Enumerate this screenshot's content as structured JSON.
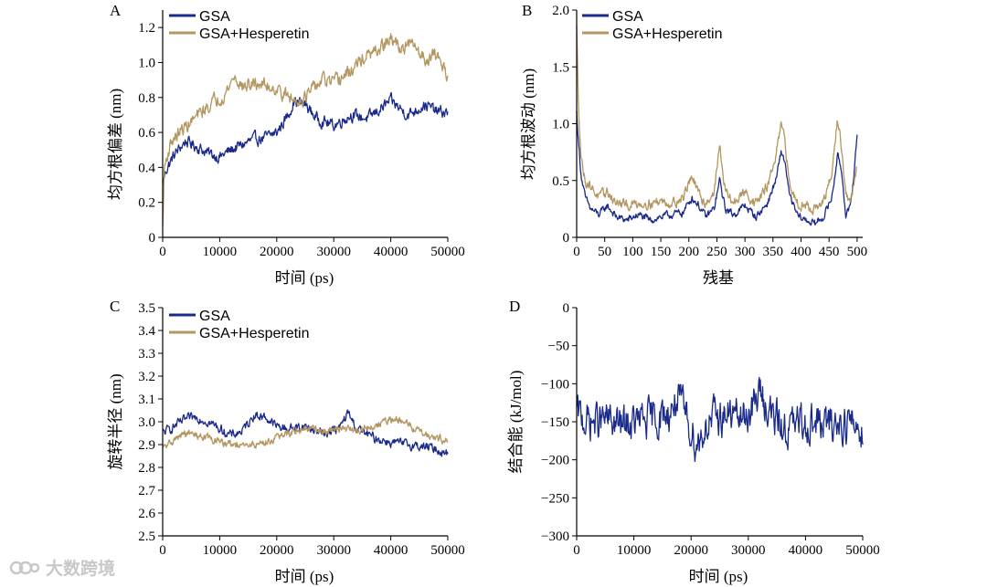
{
  "colors": {
    "gsa": "#1a2a8a",
    "hesperetin": "#b39660",
    "axis": "#000000"
  },
  "watermark": {
    "text": "大数跨境",
    "icon": "brand-logo-icon"
  },
  "chart_data": [
    {
      "id": "A",
      "panel_label": "A",
      "type": "line",
      "xlabel": "时间 (ps)",
      "ylabel": "均方根偏差 (nm)",
      "xlim": [
        0,
        50000
      ],
      "ylim": [
        0,
        1.3
      ],
      "xticks": [
        "0",
        "10000",
        "20000",
        "30000",
        "40000",
        "50000"
      ],
      "yticks": [
        "0",
        "0.2",
        "0.4",
        "0.6",
        "0.8",
        "1.0",
        "1.2"
      ],
      "legend_position": "top-left",
      "series": [
        {
          "name": "GSA",
          "color": "#1a2a8a",
          "noise": 0.03,
          "x": [
            0,
            500,
            2000,
            4000,
            6000,
            8000,
            10000,
            12000,
            14000,
            16000,
            18000,
            20000,
            22000,
            23000,
            25000,
            27000,
            30000,
            33000,
            36000,
            40000,
            43000,
            46000,
            48000,
            50000
          ],
          "y": [
            0.3,
            0.38,
            0.47,
            0.55,
            0.52,
            0.48,
            0.46,
            0.5,
            0.53,
            0.56,
            0.57,
            0.6,
            0.7,
            0.78,
            0.76,
            0.68,
            0.64,
            0.7,
            0.68,
            0.78,
            0.7,
            0.76,
            0.72,
            0.71
          ]
        },
        {
          "name": "GSA+Hesperetin",
          "color": "#b39660",
          "noise": 0.035,
          "x": [
            0,
            300,
            1500,
            3000,
            5000,
            7000,
            9000,
            11000,
            12500,
            14000,
            17000,
            20000,
            23000,
            25000,
            28000,
            30000,
            33000,
            35000,
            37000,
            40000,
            42000,
            44000,
            46000,
            48000,
            50000
          ],
          "y": [
            0.05,
            0.4,
            0.55,
            0.6,
            0.66,
            0.72,
            0.78,
            0.82,
            0.92,
            0.86,
            0.88,
            0.85,
            0.78,
            0.8,
            0.9,
            0.88,
            0.95,
            1.02,
            1.05,
            1.13,
            1.08,
            1.1,
            1.02,
            1.05,
            0.93
          ]
        }
      ]
    },
    {
      "id": "B",
      "panel_label": "B",
      "type": "line",
      "xlabel": "残基",
      "ylabel": "均方根波动 (nm)",
      "xlim": [
        0,
        510
      ],
      "ylim": [
        0,
        2.0
      ],
      "xticks": [
        "0",
        "50",
        "100",
        "150",
        "200",
        "250",
        "300",
        "350",
        "400",
        "450",
        "500"
      ],
      "yticks": [
        "0",
        "0.5",
        "1.0",
        "1.5",
        "2.0"
      ],
      "legend_position": "top-left",
      "series": [
        {
          "name": "GSA",
          "color": "#1a2a8a",
          "noise": 0.03,
          "x": [
            0,
            3,
            8,
            15,
            25,
            40,
            55,
            70,
            90,
            110,
            130,
            150,
            170,
            190,
            205,
            215,
            230,
            245,
            255,
            265,
            280,
            300,
            320,
            340,
            355,
            365,
            372,
            380,
            395,
            410,
            425,
            440,
            455,
            465,
            472,
            480,
            488,
            495,
            500
          ],
          "y": [
            1.1,
            0.85,
            0.55,
            0.35,
            0.25,
            0.2,
            0.28,
            0.18,
            0.15,
            0.2,
            0.15,
            0.18,
            0.2,
            0.22,
            0.35,
            0.3,
            0.18,
            0.25,
            0.5,
            0.25,
            0.2,
            0.28,
            0.18,
            0.3,
            0.5,
            0.75,
            0.65,
            0.35,
            0.18,
            0.15,
            0.12,
            0.18,
            0.35,
            0.72,
            0.6,
            0.2,
            0.25,
            0.6,
            0.9
          ]
        },
        {
          "name": "GSA+Hesperetin",
          "color": "#b39660",
          "noise": 0.04,
          "x": [
            0,
            3,
            8,
            15,
            25,
            40,
            55,
            70,
            90,
            110,
            130,
            150,
            170,
            190,
            205,
            215,
            230,
            245,
            255,
            265,
            280,
            300,
            320,
            340,
            355,
            365,
            372,
            380,
            395,
            410,
            425,
            440,
            455,
            465,
            472,
            480,
            488,
            495,
            500
          ],
          "y": [
            1.85,
            1.2,
            0.7,
            0.5,
            0.45,
            0.35,
            0.4,
            0.3,
            0.28,
            0.3,
            0.3,
            0.32,
            0.3,
            0.35,
            0.55,
            0.4,
            0.3,
            0.4,
            0.8,
            0.4,
            0.3,
            0.4,
            0.3,
            0.45,
            0.7,
            1.0,
            0.8,
            0.45,
            0.3,
            0.28,
            0.25,
            0.3,
            0.55,
            1.05,
            0.8,
            0.35,
            0.3,
            0.5,
            0.6
          ]
        }
      ]
    },
    {
      "id": "C",
      "panel_label": "C",
      "type": "line",
      "xlabel": "时间 (ps)",
      "ylabel": "旋转半径 (nm)",
      "xlim": [
        0,
        50000
      ],
      "ylim": [
        2.5,
        3.5
      ],
      "xticks": [
        "0",
        "10000",
        "20000",
        "30000",
        "40000",
        "50000"
      ],
      "yticks": [
        "2.5",
        "2.6",
        "2.7",
        "2.8",
        "2.9",
        "3.0",
        "3.1",
        "3.2",
        "3.3",
        "3.4",
        "3.5"
      ],
      "legend_position": "top-left",
      "series": [
        {
          "name": "GSA",
          "color": "#1a2a8a",
          "noise": 0.018,
          "x": [
            0,
            2000,
            4000,
            6000,
            8000,
            10000,
            12000,
            14000,
            16000,
            18000,
            20000,
            22000,
            25000,
            28000,
            31000,
            32500,
            34000,
            37000,
            40000,
            43000,
            46000,
            48000,
            50000
          ],
          "y": [
            2.95,
            2.98,
            3.01,
            3.02,
            3.0,
            2.97,
            2.94,
            2.96,
            3.03,
            3.02,
            2.98,
            2.97,
            2.98,
            2.95,
            2.97,
            3.04,
            2.97,
            2.93,
            2.91,
            2.9,
            2.89,
            2.88,
            2.86
          ]
        },
        {
          "name": "GSA+Hesperetin",
          "color": "#b39660",
          "noise": 0.015,
          "x": [
            0,
            2000,
            4000,
            6000,
            8000,
            10000,
            12000,
            14000,
            16000,
            18000,
            20000,
            22000,
            25000,
            28000,
            31000,
            34000,
            37000,
            40000,
            42000,
            45000,
            48000,
            50000
          ],
          "y": [
            2.88,
            2.92,
            2.95,
            2.94,
            2.93,
            2.91,
            2.9,
            2.89,
            2.9,
            2.91,
            2.93,
            2.95,
            2.97,
            2.96,
            2.97,
            2.96,
            2.98,
            3.01,
            3.0,
            2.96,
            2.93,
            2.92
          ]
        }
      ]
    },
    {
      "id": "D",
      "panel_label": "D",
      "type": "line",
      "xlabel": "时间 (ps)",
      "ylabel": "结合能 (kJ/mol)",
      "xlim": [
        0,
        50000
      ],
      "ylim": [
        -300,
        0
      ],
      "xticks": [
        "0",
        "10000",
        "20000",
        "30000",
        "40000",
        "50000"
      ],
      "yticks": [
        "−300",
        "−250",
        "−200",
        "−150",
        "−100",
        "−50",
        "0"
      ],
      "legend_position": "none",
      "series": [
        {
          "name": "GSA",
          "color": "#1a2a8a",
          "noise": 22,
          "x": [
            0,
            2000,
            5000,
            8000,
            11000,
            14000,
            16000,
            17500,
            19000,
            21000,
            23000,
            26000,
            29000,
            31000,
            32000,
            34000,
            36000,
            38000,
            41000,
            44000,
            47000,
            50000
          ],
          "y": [
            -140,
            -150,
            -148,
            -155,
            -150,
            -145,
            -140,
            -120,
            -140,
            -180,
            -150,
            -140,
            -145,
            -130,
            -110,
            -140,
            -160,
            -155,
            -150,
            -155,
            -150,
            -160
          ]
        }
      ]
    }
  ]
}
